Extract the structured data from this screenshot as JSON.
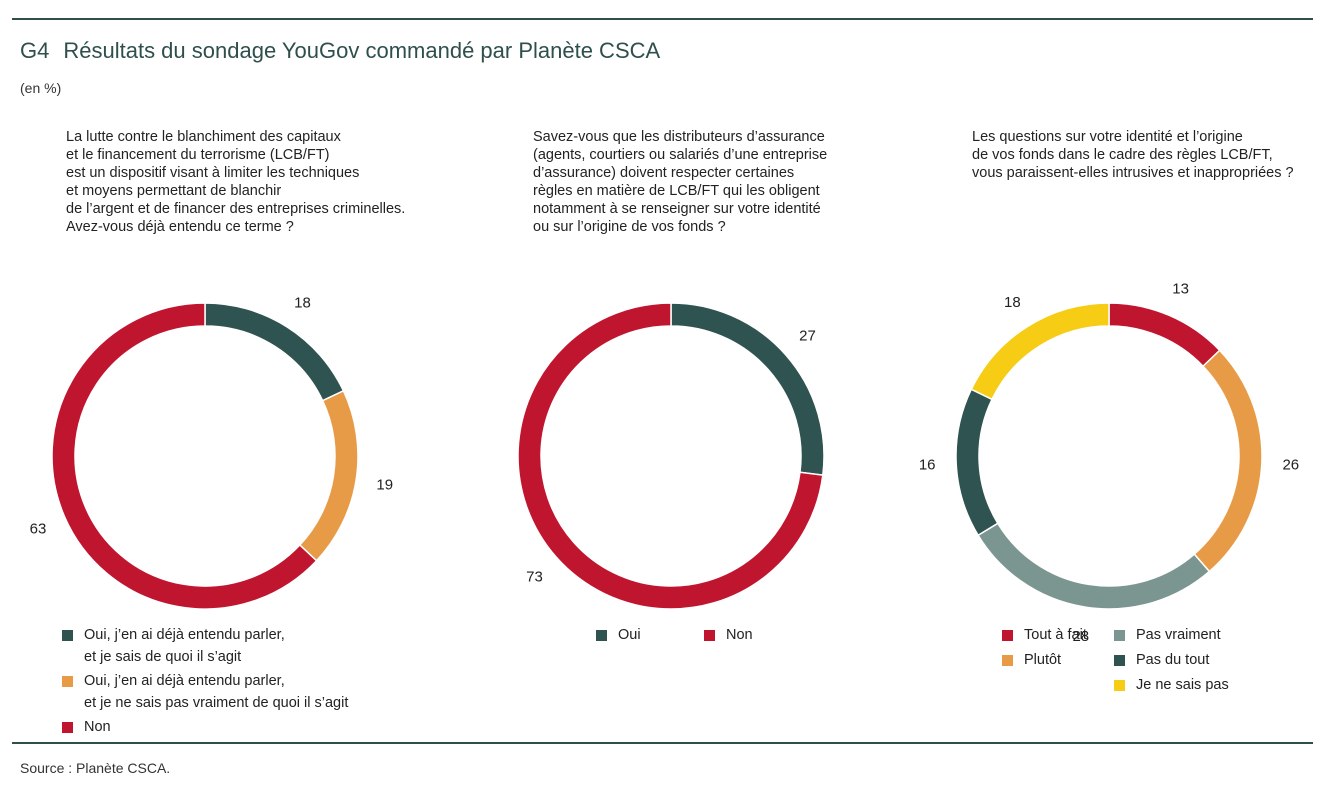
{
  "header": {
    "code": "G4",
    "title": "Résultats du sondage YouGov commandé par Planète CSCA",
    "unit": "(en %)"
  },
  "colors": {
    "dark_teal": "#2f5350",
    "orange": "#e89b47",
    "red": "#c0152f",
    "grey_green": "#7b9590",
    "yellow": "#f7cc15",
    "rule": "#2f4f4d"
  },
  "chart_data": [
    {
      "type": "pie",
      "donut": true,
      "question_lines": [
        "La lutte contre le blanchiment des capitaux",
        "et le financement du terrorisme (LCB/FT)",
        "est un dispositif visant à limiter les techniques",
        "et moyens permettant de blanchir",
        "de l’argent et de financer des entreprises criminelles.",
        "Avez-vous déjà entendu ce terme ?"
      ],
      "slices": [
        {
          "value": 18,
          "label": "18",
          "color": "#2f5350",
          "legend": [
            "Oui, j’en ai déjà entendu parler,",
            "et je sais de quoi il s’agit"
          ]
        },
        {
          "value": 19,
          "label": "19",
          "color": "#e89b47",
          "legend": [
            "Oui, j’en ai déjà entendu parler,",
            "et je ne sais pas vraiment de quoi il s’agit"
          ]
        },
        {
          "value": 63,
          "label": "63",
          "color": "#c0152f",
          "legend": [
            "Non"
          ]
        }
      ]
    },
    {
      "type": "pie",
      "donut": true,
      "question_lines": [
        "Savez-vous que les distributeurs d’assurance",
        "(agents, courtiers ou salariés d’une entreprise",
        "d’assurance) doivent respecter certaines",
        "règles en matière de LCB/FT qui les obligent",
        "notamment à se renseigner sur votre identité",
        "ou sur l’origine de vos fonds ?"
      ],
      "slices": [
        {
          "value": 27,
          "label": "27",
          "color": "#2f5350",
          "legend": [
            "Oui"
          ]
        },
        {
          "value": 73,
          "label": "73",
          "color": "#c0152f",
          "legend": [
            "Non"
          ]
        }
      ]
    },
    {
      "type": "pie",
      "donut": true,
      "question_lines": [
        "Les questions sur votre identité et l’origine",
        "de vos fonds dans le cadre des règles LCB/FT,",
        "vous paraissent-elles intrusives et inappropriées ?"
      ],
      "slices": [
        {
          "value": 13,
          "label": "13",
          "color": "#c0152f",
          "legend": [
            "Tout à fait"
          ]
        },
        {
          "value": 26,
          "label": "26",
          "color": "#e89b47",
          "legend": [
            "Plutôt"
          ]
        },
        {
          "value": 28,
          "label": "28",
          "color": "#7b9590",
          "legend": [
            "Pas vraiment"
          ]
        },
        {
          "value": 16,
          "label": "16",
          "color": "#2f5350",
          "legend": [
            "Pas du tout"
          ]
        },
        {
          "value": 18,
          "label": "18",
          "color": "#f7cc15",
          "legend": [
            "Je ne sais pas"
          ]
        }
      ]
    }
  ],
  "footer": {
    "source": "Source : Planète CSCA."
  }
}
